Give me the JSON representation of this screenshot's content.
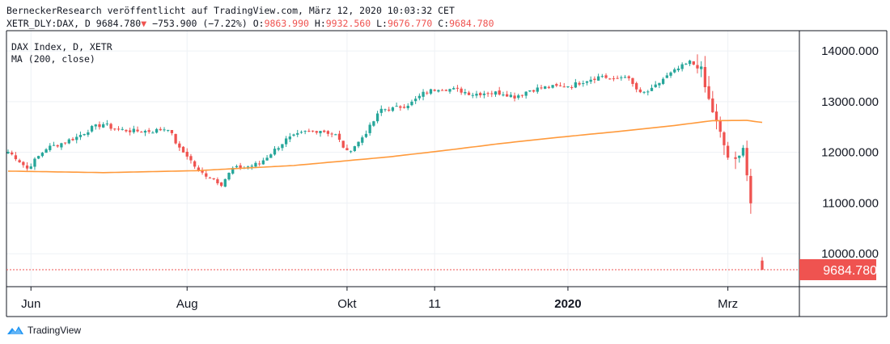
{
  "header": {
    "title": "BerneckerResearch veröffentlicht auf TradingView.com, März 12, 2020 10:03:32 CET",
    "symbol": "XETR_DLY:DAX, D",
    "last": "9684.780",
    "change_arrow": "▼",
    "change": "−753.900 (−7.22%)",
    "open_label": "O:",
    "open": "9863.990",
    "high_label": "H:",
    "high": "9932.560",
    "low_label": "L:",
    "low": "9676.770",
    "close_label": "C:",
    "close": "9684.780"
  },
  "legend": {
    "series": "DAX Index, D, XETR",
    "indicator": "MA (200, close)"
  },
  "brand": {
    "name": "TradingView"
  },
  "colors": {
    "up": "#26a69a",
    "down": "#ef5350",
    "ma": "#ff9a3c",
    "grid": "#eef1f5",
    "axis": "#131722",
    "last_bg": "#ef5350"
  },
  "chart_data": {
    "type": "candlestick",
    "title": "DAX Index, D, XETR",
    "ylim": [
      9350,
      14400
    ],
    "y_ticks": [
      "14000.000",
      "13000.000",
      "12000.000",
      "11000.000",
      "10000.000"
    ],
    "last_price_label": "9684.780",
    "last_price": 9684.78,
    "x_ticks": [
      {
        "label": "Jun",
        "bold": false,
        "index": 6
      },
      {
        "label": "Aug",
        "bold": false,
        "index": 47
      },
      {
        "label": "Okt",
        "bold": false,
        "index": 89
      },
      {
        "label": "11",
        "bold": false,
        "index": 112
      },
      {
        "label": "2020",
        "bold": true,
        "index": 147
      },
      {
        "label": "Mrz",
        "bold": false,
        "index": 189
      }
    ],
    "bar_count": 199,
    "ma_label": "MA (200, close)",
    "ma_values": [
      [
        0,
        11630
      ],
      [
        25,
        11600
      ],
      [
        50,
        11640
      ],
      [
        75,
        11740
      ],
      [
        100,
        11910
      ],
      [
        115,
        12040
      ],
      [
        130,
        12180
      ],
      [
        145,
        12300
      ],
      [
        160,
        12410
      ],
      [
        175,
        12530
      ],
      [
        185,
        12625
      ],
      [
        194,
        12630
      ],
      [
        198,
        12590
      ]
    ],
    "close_series": [
      [
        0,
        12010
      ],
      [
        2,
        11900
      ],
      [
        5,
        11680
      ],
      [
        10,
        12080
      ],
      [
        14,
        12180
      ],
      [
        18,
        12300
      ],
      [
        22,
        12480
      ],
      [
        25,
        12560
      ],
      [
        28,
        12460
      ],
      [
        33,
        12420
      ],
      [
        38,
        12420
      ],
      [
        42,
        12480
      ],
      [
        45,
        12060
      ],
      [
        47,
        11940
      ],
      [
        50,
        11620
      ],
      [
        53,
        11520
      ],
      [
        56,
        11380
      ],
      [
        59,
        11680
      ],
      [
        62,
        11700
      ],
      [
        66,
        11780
      ],
      [
        70,
        12050
      ],
      [
        73,
        12250
      ],
      [
        78,
        12400
      ],
      [
        82,
        12440
      ],
      [
        86,
        12340
      ],
      [
        89,
        12000
      ],
      [
        92,
        12200
      ],
      [
        95,
        12500
      ],
      [
        98,
        12850
      ],
      [
        101,
        12860
      ],
      [
        104,
        12920
      ],
      [
        106,
        12980
      ],
      [
        109,
        13160
      ],
      [
        113,
        13270
      ],
      [
        118,
        13230
      ],
      [
        122,
        13150
      ],
      [
        126,
        13180
      ],
      [
        130,
        13170
      ],
      [
        133,
        13100
      ],
      [
        137,
        13230
      ],
      [
        141,
        13280
      ],
      [
        145,
        13300
      ],
      [
        148,
        13320
      ],
      [
        152,
        13430
      ],
      [
        156,
        13510
      ],
      [
        159,
        13420
      ],
      [
        162,
        13520
      ],
      [
        166,
        13150
      ],
      [
        169,
        13230
      ],
      [
        172,
        13450
      ],
      [
        176,
        13650
      ],
      [
        179,
        13780
      ],
      [
        182,
        13650
      ],
      [
        183,
        13280
      ],
      [
        185,
        12800
      ],
      [
        187,
        12380
      ],
      [
        189,
        11900
      ],
      [
        191,
        11850
      ],
      [
        193,
        12100
      ],
      [
        194,
        11550
      ],
      [
        195,
        10950
      ],
      [
        196,
        10620
      ],
      [
        197,
        10470
      ],
      [
        199,
        9684.78
      ]
    ]
  }
}
